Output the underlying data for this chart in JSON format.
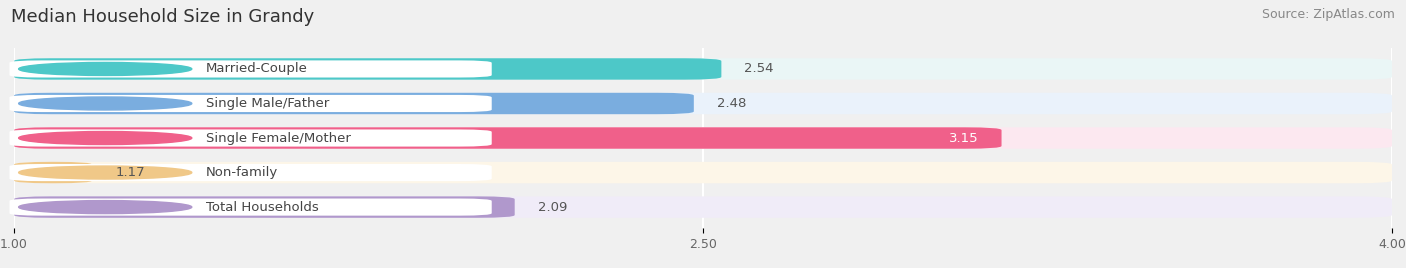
{
  "title": "Median Household Size in Grandy",
  "source": "Source: ZipAtlas.com",
  "categories": [
    "Married-Couple",
    "Single Male/Father",
    "Single Female/Mother",
    "Non-family",
    "Total Households"
  ],
  "values": [
    2.54,
    2.48,
    3.15,
    1.17,
    2.09
  ],
  "bar_colors": [
    "#4dc8c8",
    "#7aaddf",
    "#f0608a",
    "#f0c888",
    "#b098cc"
  ],
  "bar_bg_colors": [
    "#eaf6f6",
    "#eaf2fb",
    "#fce8f0",
    "#fdf6e8",
    "#f0ecf8"
  ],
  "dot_colors": [
    "#4dc8c8",
    "#7aaddf",
    "#f0608a",
    "#f0c888",
    "#b098cc"
  ],
  "xlim": [
    1.0,
    4.0
  ],
  "xticks": [
    1.0,
    2.5,
    4.0
  ],
  "title_fontsize": 13,
  "source_fontsize": 9,
  "label_fontsize": 9.5,
  "value_fontsize": 9.5,
  "tick_fontsize": 9,
  "background_color": "#f0f0f0",
  "bar_background": "#ffffff",
  "value_inside_color": "#ffffff",
  "value_outside_color": "#555555"
}
